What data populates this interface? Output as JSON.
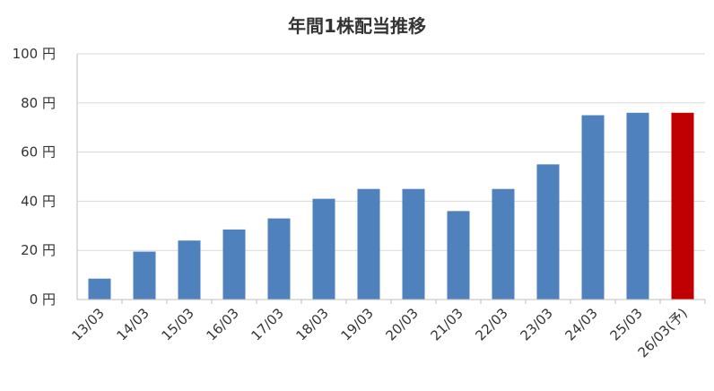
{
  "chart_data": {
    "type": "bar",
    "title": "年間1株配当推移",
    "categories": [
      "13/03",
      "14/03",
      "15/03",
      "16/03",
      "17/03",
      "18/03",
      "19/03",
      "20/03",
      "21/03",
      "22/03",
      "23/03",
      "24/03",
      "25/03",
      "26/03(予)"
    ],
    "values": [
      8.5,
      19.5,
      24,
      28.5,
      33,
      41,
      45,
      45,
      36,
      45,
      55,
      75,
      76,
      76
    ],
    "yticks": [
      "0 円",
      "20 円",
      "40 円",
      "60 円",
      "80 円",
      "100 円"
    ],
    "ylim": [
      0,
      100
    ],
    "grid": true,
    "legend": "none",
    "colors": {
      "actual": "#4f81bd",
      "forecast": "#c00000",
      "grid": "#d9d9d9",
      "axis": "#bfbfbf"
    },
    "forecast_index": 13
  }
}
